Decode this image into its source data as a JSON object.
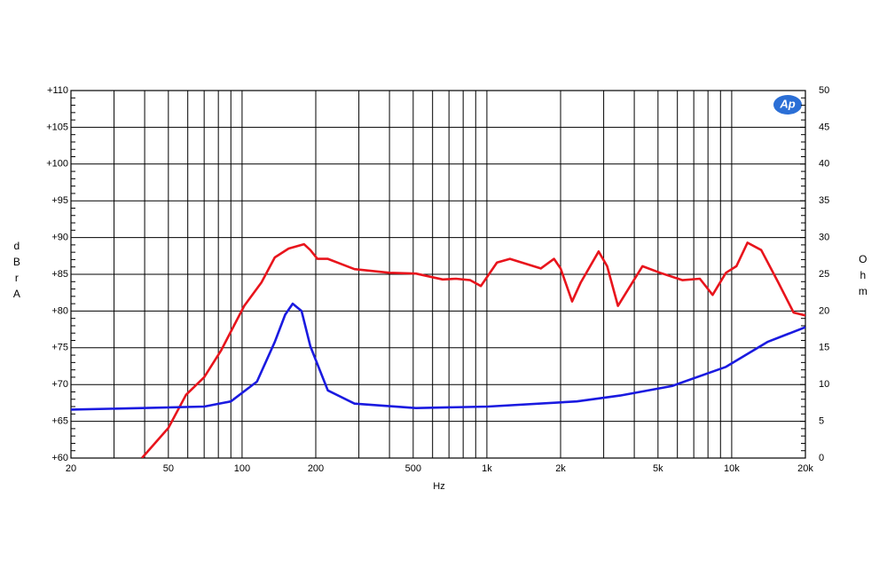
{
  "chart_data": {
    "type": "line",
    "xlabel": "Hz",
    "ylabel": "dBrA",
    "y2label": "Ohm",
    "logo": "Ap",
    "xscale": "log",
    "grid": true,
    "xlim": [
      20,
      20000
    ],
    "xticks": [
      20,
      50,
      100,
      200,
      500,
      {
        "value": 1000,
        "label": "1k"
      },
      {
        "value": 2000,
        "label": "2k"
      },
      {
        "value": 5000,
        "label": "5k"
      },
      {
        "value": 10000,
        "label": "10k"
      },
      {
        "value": 20000,
        "label": "20k"
      }
    ],
    "xgrid": [
      30,
      40,
      60,
      70,
      80,
      90,
      300,
      400,
      600,
      700,
      800,
      900,
      3000,
      4000,
      6000,
      7000,
      8000,
      9000
    ],
    "ylim": [
      60,
      110
    ],
    "yticks": [
      {
        "value": 60,
        "label": "+60"
      },
      {
        "value": 65,
        "label": "+65"
      },
      {
        "value": 70,
        "label": "+70"
      },
      {
        "value": 75,
        "label": "+75"
      },
      {
        "value": 80,
        "label": "+80"
      },
      {
        "value": 85,
        "label": "+85"
      },
      {
        "value": 90,
        "label": "+90"
      },
      {
        "value": 95,
        "label": "+95"
      },
      {
        "value": 100,
        "label": "+100"
      },
      {
        "value": 105,
        "label": "+105"
      },
      {
        "value": 110,
        "label": "+110"
      }
    ],
    "y2lim": [
      0,
      50
    ],
    "y2ticks": [
      0,
      5,
      10,
      15,
      20,
      25,
      30,
      35,
      40,
      45,
      50
    ],
    "series": [
      {
        "color": "#e8141c",
        "axis": "y",
        "x": [
          39,
          50,
          59,
          70,
          82,
          102,
          120,
          136,
          155,
          179,
          190,
          203,
          224,
          288,
          401,
          513,
          660,
          748,
          855,
          945,
          1100,
          1242,
          1660,
          1880,
          2000,
          2230,
          2420,
          2860,
          3100,
          3430,
          3900,
          4320,
          5100,
          6300,
          7410,
          8360,
          9470,
          10450,
          11600,
          13200,
          15500,
          17900,
          20000
        ],
        "values": [
          60,
          64.1,
          68.6,
          71.0,
          74.6,
          80.7,
          83.9,
          87.3,
          88.5,
          89.1,
          88.3,
          87.1,
          87.1,
          85.7,
          85.2,
          85.1,
          84.3,
          84.4,
          84.2,
          83.4,
          86.6,
          87.1,
          85.8,
          87.1,
          85.8,
          81.3,
          83.9,
          88.1,
          86.1,
          80.7,
          83.7,
          86.1,
          85.2,
          84.2,
          84.4,
          82.2,
          85.2,
          86.1,
          89.3,
          88.3,
          83.9,
          79.8,
          79.4
        ]
      },
      {
        "color": "#1a1ae0",
        "axis": "y2",
        "x": [
          20,
          39,
          70,
          90,
          115,
          136,
          150,
          161,
          175,
          190,
          224,
          288,
          513,
          1010,
          2330,
          3500,
          5700,
          9470,
          14000,
          20000
        ],
        "values": [
          6.6,
          6.8,
          7.0,
          7.7,
          10.4,
          15.8,
          19.5,
          21.0,
          20.0,
          15.2,
          9.2,
          7.4,
          6.8,
          7.0,
          7.7,
          8.5,
          9.8,
          12.4,
          15.8,
          17.8
        ]
      }
    ]
  }
}
